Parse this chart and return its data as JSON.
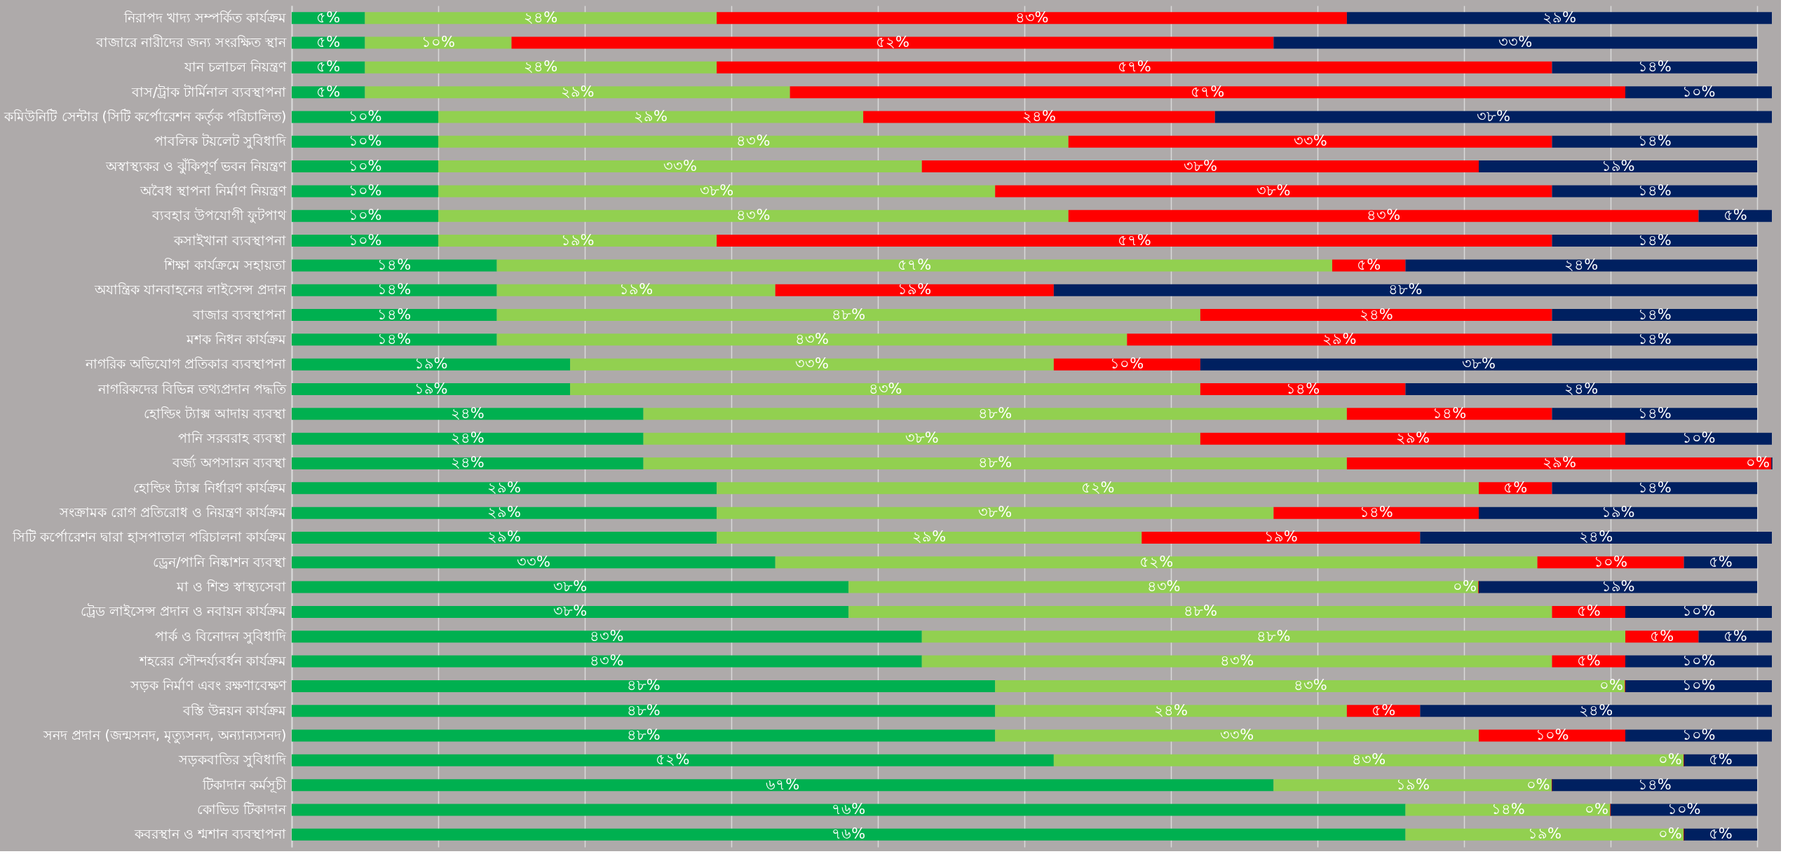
{
  "chart_data": {
    "type": "bar",
    "orientation": "horizontal",
    "stacked": true,
    "grid": "x",
    "tick_labels": "y",
    "xlim": [
      0,
      101
    ],
    "xticks": [
      {
        "value": 0,
        "label": null
      },
      {
        "value": 10,
        "label": null
      },
      {
        "value": 20,
        "label": null
      },
      {
        "value": 30,
        "label": null
      },
      {
        "value": 40,
        "label": null
      },
      {
        "value": 50,
        "label": null
      },
      {
        "value": 60,
        "label": null
      },
      {
        "value": 70,
        "label": null
      },
      {
        "value": 80,
        "label": null
      },
      {
        "value": 90,
        "label": null
      },
      {
        "value": 100,
        "label": null
      }
    ],
    "categories": [
      "নিরাপদ খাদ্য সম্পর্কিত কার্যক্রম",
      "বাজারে নারীদের জন্য সংরক্ষিত স্থান",
      "যান চলাচল নিয়ন্ত্রণ",
      "বাস/ট্রাক টার্মিনাল ব্যবস্থাপনা",
      "কমিউনিটি সেন্টার (সিটি কর্পোরেশন কর্তৃক পরিচালিত)",
      "পাবলিক টয়লেট সুবিধাদি",
      "অস্বাস্থ্যকর ও ঝুঁকিপূর্ণ ভবন নিয়ন্ত্রণ",
      "অবৈধ স্থাপনা নির্মাণ নিয়ন্ত্রণ",
      "ব্যবহার উপযোগী ফুটপাথ",
      "কসাইখানা ব্যবস্থাপনা",
      "শিক্ষা কার্যক্রমে সহায়তা",
      "অযান্ত্রিক যানবাহনের লাইসেন্স প্রদান",
      "বাজার ব্যবস্থাপনা",
      "মশক নিধন কার্যক্রম",
      "নাগরিক অভিযোগ প্রতিকার ব্যবস্থাপনা",
      "নাগরিকদের বিভিন্ন তথ্যপ্রদান পদ্ধতি",
      "হোল্ডিং ট্যাক্স আদায় ব্যবস্থা",
      "পানি সরবরাহ ব্যবস্থা",
      "বর্জ্য অপসারন ব্যবস্থা",
      "হোল্ডিং ট্যাক্স নির্ধারণ কার্যক্রম",
      "সংক্রামক রোগ প্রতিরোধ ও নিয়ন্ত্রণ কার্যক্রম",
      "সিটি কর্পোরেশন দ্বারা হাসপাতাল পরিচালনা কার্যক্রম",
      "ড্রেন/পানি নিষ্কাশন ব্যবস্থা",
      "মা ও শিশু স্বাস্থ্যসেবা",
      "ট্রেড লাইসেন্স প্রদান ও নবায়ন কার্যক্রম",
      "পার্ক ও বিনোদন সুবিধাদি",
      "শহরের সৌন্দর্য্যবর্ধন কার্যক্রম",
      "সড়ক নির্মাণ এবং রক্ষণাবেক্ষণ",
      "বস্তি উন্নয়ন কার্যক্রম",
      "সনদ প্রদান (জন্মসনদ, মৃত্যুসনদ, অন্যান্যসনদ)",
      "সড়কবাতির সুবিধাদি",
      "টিকাদান কর্মসূচী",
      "কোভিড টিকাদান",
      "কবরস্থান ও শ্মশান ব্যবস্থাপনা"
    ],
    "series": [
      {
        "color": "#00b050",
        "values": [
          5,
          5,
          5,
          5,
          10,
          10,
          10,
          10,
          10,
          10,
          14,
          14,
          14,
          14,
          19,
          19,
          24,
          24,
          24,
          29,
          29,
          29,
          33,
          38,
          38,
          43,
          43,
          48,
          48,
          48,
          52,
          67,
          76,
          76
        ],
        "value_labels": [
          "৫%",
          "৫%",
          "৫%",
          "৫%",
          "১০%",
          "১০%",
          "১০%",
          "১০%",
          "১০%",
          "১০%",
          "১৪%",
          "১৪%",
          "১৪%",
          "১৪%",
          "১৯%",
          "১৯%",
          "২৪%",
          "২৪%",
          "২৪%",
          "২৯%",
          "২৯%",
          "২৯%",
          "৩৩%",
          "৩৮%",
          "৩৮%",
          "৪৩%",
          "৪৩%",
          "৪৮%",
          "৪৮%",
          "৪৮%",
          "৫২%",
          "৬৭%",
          "৭৬%",
          "৭৬%"
        ]
      },
      {
        "color": "#92d050",
        "values": [
          24,
          10,
          24,
          29,
          29,
          43,
          33,
          38,
          43,
          19,
          57,
          19,
          48,
          43,
          33,
          43,
          48,
          38,
          48,
          52,
          38,
          29,
          52,
          43,
          48,
          48,
          43,
          43,
          24,
          33,
          43,
          19,
          14,
          19
        ],
        "value_labels": [
          "২৪%",
          "১০%",
          "২৪%",
          "২৯%",
          "২৯%",
          "৪৩%",
          "৩৩%",
          "৩৮%",
          "৪৩%",
          "১৯%",
          "৫৭%",
          "১৯%",
          "৪৮%",
          "৪৩%",
          "৩৩%",
          "৪৩%",
          "৪৮%",
          "৩৮%",
          "৪৮%",
          "৫২%",
          "৩৮%",
          "২৯%",
          "৫২%",
          "৪৩%",
          "৪৮%",
          "৪৮%",
          "৪৩%",
          "৪৩%",
          "২৪%",
          "৩৩%",
          "৪৩%",
          "১৯%",
          "১৪%",
          "১৯%"
        ]
      },
      {
        "color": "#ff0000",
        "values": [
          43,
          52,
          57,
          57,
          24,
          33,
          38,
          38,
          43,
          57,
          5,
          19,
          24,
          29,
          10,
          14,
          14,
          29,
          29,
          5,
          14,
          19,
          10,
          0,
          5,
          5,
          5,
          0,
          5,
          10,
          0,
          0,
          0,
          0
        ],
        "value_labels": [
          "৪৩%",
          "৫২%",
          "৫৭%",
          "৫৭%",
          "২৪%",
          "৩৩%",
          "৩৮%",
          "৩৮%",
          "৪৩%",
          "৫৭%",
          "৫%",
          "১৯%",
          "২৪%",
          "২৯%",
          "১০%",
          "১৪%",
          "১৪%",
          "২৯%",
          "২৯%",
          "৫%",
          "১৪%",
          "১৯%",
          "১০%",
          "০%",
          "৫%",
          "৫%",
          "৫%",
          "০%",
          "৫%",
          "১০%",
          "০%",
          "০%",
          "০%",
          "০%"
        ]
      },
      {
        "color": "#002060",
        "values": [
          29,
          33,
          14,
          10,
          38,
          14,
          19,
          14,
          5,
          14,
          24,
          48,
          14,
          14,
          38,
          24,
          14,
          10,
          0,
          14,
          19,
          24,
          5,
          19,
          10,
          5,
          10,
          10,
          24,
          10,
          5,
          14,
          10,
          5
        ],
        "value_labels": [
          "২৯%",
          "৩৩%",
          "১৪%",
          "১০%",
          "৩৮%",
          "১৪%",
          "১৯%",
          "১৪%",
          "৫%",
          "১৪%",
          "২৪%",
          "৪৮%",
          "১৪%",
          "১৪%",
          "৩৮%",
          "২৪%",
          "১৪%",
          "১০%",
          "০%",
          "১৪%",
          "১৯%",
          "২৪%",
          "৫%",
          "১৯%",
          "১০%",
          "৫%",
          "১০%",
          "১০%",
          "২৪%",
          "১০%",
          "৫%",
          "১৪%",
          "১০%",
          "৫%"
        ]
      }
    ]
  }
}
